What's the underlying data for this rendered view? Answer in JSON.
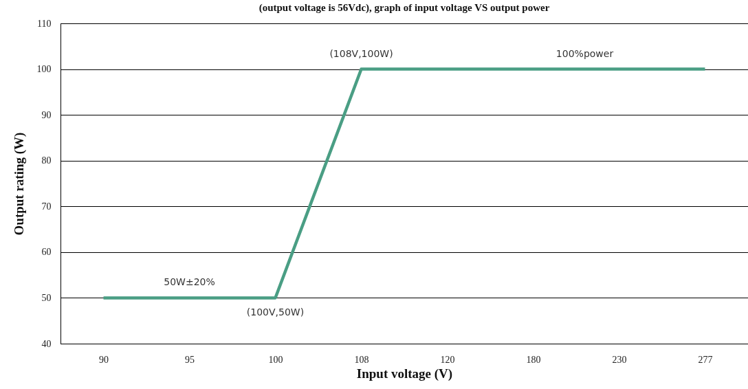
{
  "chart_data": {
    "type": "line",
    "title": "(output voltage is 56Vdc), graph of input voltage VS output power",
    "xlabel": "Input voltage (V)",
    "ylabel": "Output rating (W)",
    "categories": [
      "90",
      "95",
      "100",
      "108",
      "120",
      "180",
      "230",
      "277"
    ],
    "series": [
      {
        "color": "#4a9e84",
        "values": [
          50,
          50,
          50,
          100,
          100,
          100,
          100,
          100
        ]
      }
    ],
    "ylim": [
      40,
      110
    ],
    "yticks": [
      40,
      50,
      60,
      70,
      80,
      90,
      100,
      110
    ],
    "grid": "y",
    "marker": "none",
    "line_style": "solid",
    "annotations": [
      {
        "text": "(108V,100W)",
        "x": "108",
        "y": 100
      },
      {
        "text": "100%power",
        "x": "180",
        "y": 100
      },
      {
        "text": "50W±20%",
        "x": "95",
        "y": 50
      },
      {
        "text": "(100V,50W)",
        "x": "100",
        "y": 50
      }
    ]
  }
}
